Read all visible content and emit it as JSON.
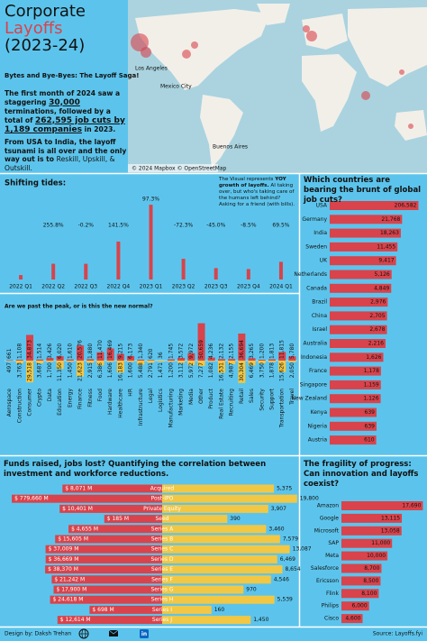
{
  "header": {
    "title": [
      "Corporate",
      "Layoffs",
      "(2023-24)"
    ],
    "subtitle": "Bytes and Bye-Byes: The Layoff Saga!",
    "paragraph1": [
      "The first month of 2024 saw a staggering ",
      "30,000",
      " terminations, followed by a total of ",
      "262,595 job cuts by 1,189 companies",
      " in 2023."
    ],
    "paragraph2": [
      "From USA to India, the layoff tsunami is all over and the only way out is to",
      "Reskill, Upskill, & Outskill."
    ]
  },
  "map": {
    "labels": [
      "Los Angeles",
      "Mexico City",
      "Buenos Aires"
    ],
    "credit": "© 2024 Mapbox © OpenStreetMap"
  },
  "chart_data": [
    {
      "type": "bar",
      "orientation": "vertical",
      "title": "Shifting tides:",
      "note": [
        "The Visual represents ",
        "YOY growth of layoffs.",
        " AI taking over, but who's taking care of the humans left behind? Asking for a friend (with bills)."
      ],
      "categories": [
        "2022 Q1",
        "2022 Q2",
        "2022 Q3",
        "2022 Q4",
        "2023 Q1",
        "2023 Q2",
        "2023 Q3",
        "2023 Q4",
        "2024 Q1"
      ],
      "values": [
        15000,
        53370,
        53260,
        128600,
        253700,
        70270,
        38650,
        35370,
        59950
      ],
      "changes": [
        null,
        "255.8%",
        "-0.2%",
        "141.5%",
        "97.3%",
        "-72.3%",
        "-45.0%",
        "-8.5%",
        "69.5%"
      ],
      "color": "#d9434b",
      "ylim": [
        0,
        260000
      ]
    },
    {
      "type": "bar",
      "orientation": "horizontal",
      "title": "Which countries are bearing the brunt of global job cuts?",
      "categories": [
        "USA",
        "Germany",
        "India",
        "Sweden",
        "UK",
        "Netherlands",
        "Canada",
        "Brazil",
        "China",
        "Israel",
        "Australia",
        "Indonesia",
        "France",
        "Singapore",
        "New Zealand",
        "Kenya",
        "Nigeria",
        "Austria"
      ],
      "values": [
        206582,
        21768,
        18263,
        11455,
        9417,
        5126,
        4849,
        2976,
        2705,
        2678,
        2216,
        1626,
        1178,
        1159,
        1126,
        639,
        639,
        610
      ],
      "value_labels": [
        "206,582",
        "21,768",
        "18,263",
        "11,455",
        "9,417",
        "5,126",
        "4,849",
        "2,976",
        "2,705",
        "2,678",
        "2,216",
        "1,626",
        "1,178",
        "1,159",
        "1,126",
        "639",
        "639",
        "610"
      ],
      "color": "#d9434b",
      "log_scale": true,
      "xlim": [
        1,
        250000
      ]
    },
    {
      "type": "bar",
      "orientation": "mirrored",
      "title": "Are we past the peak, or is this the new normal?",
      "categories": [
        "Aerospace",
        "Construction",
        "Consumer",
        "Crypto",
        "Data",
        "Education",
        "Energy",
        "Finance",
        "Fitness",
        "Food",
        "Hardware",
        "Healthcare",
        "HR",
        "Infrastructure",
        "Legal",
        "Logistics",
        "Manufacturing",
        "Marketing",
        "Media",
        "Other",
        "Product",
        "Real Estate",
        "Recruiting",
        "Retail",
        "Sales",
        "Security",
        "Support",
        "Transportation",
        "Travel"
      ],
      "series": [
        {
          "color": "#d9434b",
          "values": [
            661,
            1108,
            34873,
            1514,
            3426,
            6020,
            1610,
            20576,
            1880,
            11470,
            16469,
            9215,
            6173,
            1340,
            620,
            36,
            1745,
            3572,
            9972,
            50659,
            4236,
            2132,
            2155,
            36694,
            3265,
            1200,
            1813,
            11815,
            5780
          ],
          "value_labels": [
            "661",
            "1,108",
            "34,873",
            "1,514",
            "3,426",
            "6,020",
            "1,610",
            "20,576",
            "1,880",
            "11,470",
            "16,469",
            "9,215",
            "6,173",
            "1,340",
            "620",
            "36",
            "1,745",
            "3,572",
            "9,972",
            "50,659",
            "4,236",
            "2,132",
            "2,155",
            "36,694",
            "3,265",
            "1,200",
            "1,813",
            "11,815",
            "5,780"
          ]
        },
        {
          "color": "#f2c744",
          "values": [
            497,
            3763,
            29518,
            3687,
            1700,
            11350,
            1450,
            21623,
            2915,
            6386,
            1606,
            16183,
            1600,
            5488,
            2791,
            1471,
            1200,
            3112,
            5972,
            7277,
            1082,
            16531,
            4987,
            30304,
            6469,
            3750,
            1878,
            15626,
            2050
          ],
          "value_labels": [
            "497",
            "3,763",
            "29,518",
            "3,687",
            "1,700",
            "11,350",
            "1,450",
            "21,623",
            "2,915",
            "6,386",
            "1,606",
            "16,183",
            "1,600",
            "5,488",
            "2,791",
            "1,471",
            "1,200",
            "3,112",
            "5,972",
            "7,277",
            "1,082",
            "16,531",
            "4,987",
            "30,304",
            "6,469",
            "3,750",
            "1,878",
            "15,626",
            "2,050"
          ]
        }
      ],
      "ylim": [
        0,
        55000
      ]
    },
    {
      "type": "bar",
      "orientation": "diverging",
      "title": "Funds raised, jobs lost? Quantifying the correlation between investment and workforce reductions.",
      "categories": [
        "Acquired",
        "Post-IPO",
        "Private Equity",
        "Seed",
        "Series A",
        "Series B",
        "Series C",
        "Series D",
        "Series E",
        "Series F",
        "Series G",
        "Series H",
        "Series I",
        "Series J"
      ],
      "series": [
        {
          "color": "#d9434b",
          "axis": "x",
          "values": [
            8071,
            779660,
            10401,
            185,
            4655,
            15605,
            37009,
            36669,
            38370,
            21242,
            17900,
            24618,
            698,
            12614
          ],
          "value_labels": [
            "$ 8,071 M",
            "$ 779,660 M",
            "$ 10,401 M",
            "$ 185 M",
            "$ 4,655 M",
            "$ 15,605 M",
            "$ 37,009 M",
            "$ 36,669 M",
            "$ 38,370 M",
            "$ 21,242 M",
            "$ 17,900 M",
            "$ 24,618 M",
            "$ 698 M",
            "$ 12,614 M"
          ]
        },
        {
          "color": "#f2c744",
          "axis": "x2",
          "values": [
            5375,
            19800,
            3907,
            390,
            3460,
            7579,
            13087,
            6469,
            8654,
            4546,
            970,
            5539,
            160,
            1450
          ],
          "value_labels": [
            "5,375",
            "19,800",
            "3,907",
            "390",
            "3,460",
            "7,579",
            "13,087",
            "6,469",
            "8,654",
            "4,546",
            "970",
            "5,539",
            "160",
            "1,450"
          ]
        }
      ],
      "log_scale": true,
      "xlim": [
        1,
        1000000
      ],
      "x2lim": [
        10,
        20000
      ]
    },
    {
      "type": "bar",
      "orientation": "horizontal",
      "title": "The fragility of progress: Can innovation and layoffs coexist?",
      "categories": [
        "Amazon",
        "Google",
        "Microsoft",
        "SAP",
        "Meta",
        "Salesforce",
        "Ericsson",
        "Flink",
        "Philips",
        "Cisco"
      ],
      "values": [
        17690,
        13115,
        13058,
        11000,
        10000,
        8700,
        8500,
        8100,
        6000,
        4600
      ],
      "value_labels": [
        "17,690",
        "13,115",
        "13,058",
        "11,000",
        "10,000",
        "8,700",
        "8,500",
        "8,100",
        "6,000",
        "4,600"
      ],
      "color": "#d9434b",
      "log_scale": false,
      "xlim": [
        0,
        18000
      ]
    }
  ],
  "footer": {
    "credit": "Design by: Daksh Trehan",
    "source": "Source: Layoffs.fyi"
  }
}
